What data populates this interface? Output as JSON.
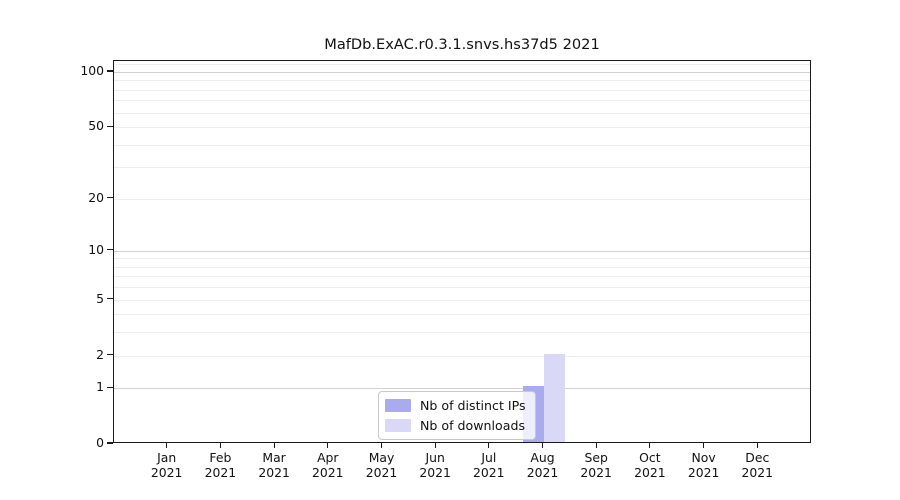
{
  "title": "MafDb.ExAC.r0.3.1.snvs.hs37d5 2021",
  "chart_data": {
    "type": "bar",
    "title": "MafDb.ExAC.r0.3.1.snvs.hs37d5 2021",
    "categories": [
      "Jan",
      "Feb",
      "Mar",
      "Apr",
      "May",
      "Jun",
      "Jul",
      "Aug",
      "Sep",
      "Oct",
      "Nov",
      "Dec"
    ],
    "year": "2021",
    "series": [
      {
        "name": "Nb of distinct IPs",
        "color": "#aaaaee",
        "values": [
          0,
          0,
          0,
          0,
          0,
          0,
          0,
          1,
          0,
          0,
          0,
          0
        ]
      },
      {
        "name": "Nb of downloads",
        "color": "#d9d9f7",
        "values": [
          0,
          0,
          0,
          0,
          0,
          0,
          0,
          2,
          0,
          0,
          0,
          0
        ]
      }
    ],
    "xlabel": "",
    "ylabel": "",
    "yscale": "log1p",
    "ylim": [
      0,
      114.8
    ],
    "y_ticks": [
      0,
      1,
      2,
      5,
      10,
      20,
      50,
      100
    ],
    "y_major_grid": [
      1,
      10,
      100
    ],
    "y_minor_ticks": [
      3,
      4,
      6,
      7,
      8,
      9,
      30,
      40,
      60,
      70,
      80,
      90,
      110
    ],
    "grid": "horizontal",
    "legend_position": "lower center, inside plot"
  },
  "legend": {
    "items": [
      {
        "label": "Nb of distinct IPs",
        "color": "#aaaaee"
      },
      {
        "label": "Nb of downloads",
        "color": "#d9d9f7"
      }
    ]
  }
}
